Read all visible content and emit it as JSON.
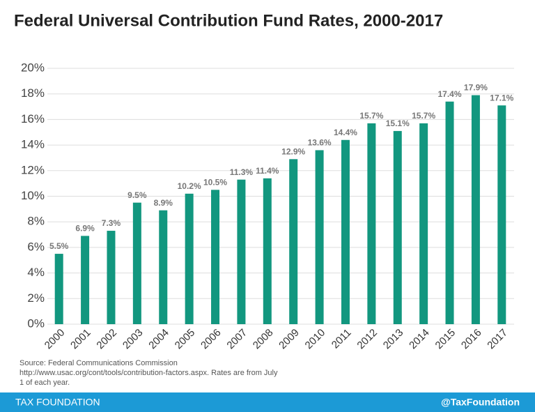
{
  "chart_data": {
    "type": "bar",
    "title": "Federal Universal Contribution Fund Rates, 2000-2017",
    "categories": [
      "2000",
      "2001",
      "2002",
      "2003",
      "2004",
      "2005",
      "2006",
      "2007",
      "2008",
      "2009",
      "2010",
      "2011",
      "2012",
      "2013",
      "2014",
      "2015",
      "2016",
      "2017"
    ],
    "values": [
      5.5,
      6.9,
      7.3,
      9.5,
      8.9,
      10.2,
      10.5,
      11.3,
      11.4,
      12.9,
      13.6,
      14.4,
      15.7,
      15.1,
      15.7,
      17.4,
      17.9,
      17.1
    ],
    "value_labels": [
      "5.5%",
      "6.9%",
      "7.3%",
      "9.5%",
      "8.9%",
      "10.2%",
      "10.5%",
      "11.3%",
      "11.4%",
      "12.9%",
      "13.6%",
      "14.4%",
      "15.7%",
      "15.1%",
      "15.7%",
      "17.4%",
      "17.9%",
      "17.1%"
    ],
    "color": "#12977f",
    "ylim": [
      0,
      20
    ],
    "yticks": [
      {
        "value": 0,
        "label": "0%"
      },
      {
        "value": 2,
        "label": "2%"
      },
      {
        "value": 4,
        "label": "4%"
      },
      {
        "value": 6,
        "label": "6%"
      },
      {
        "value": 8,
        "label": "8%"
      },
      {
        "value": 10,
        "label": "10%"
      },
      {
        "value": 12,
        "label": "12%"
      },
      {
        "value": 14,
        "label": "14%"
      },
      {
        "value": 16,
        "label": "16%"
      },
      {
        "value": 18,
        "label": "18%"
      },
      {
        "value": 20,
        "label": "20%"
      }
    ],
    "grid": true,
    "source": [
      "Source:  Federal Communications Commission",
      "http://www.usac.org/cont/tools/contribution-factors.aspx. Rates are from July",
      "1 of each year."
    ],
    "footer_left": "TAX FOUNDATION",
    "footer_right": "@TaxFoundation"
  }
}
